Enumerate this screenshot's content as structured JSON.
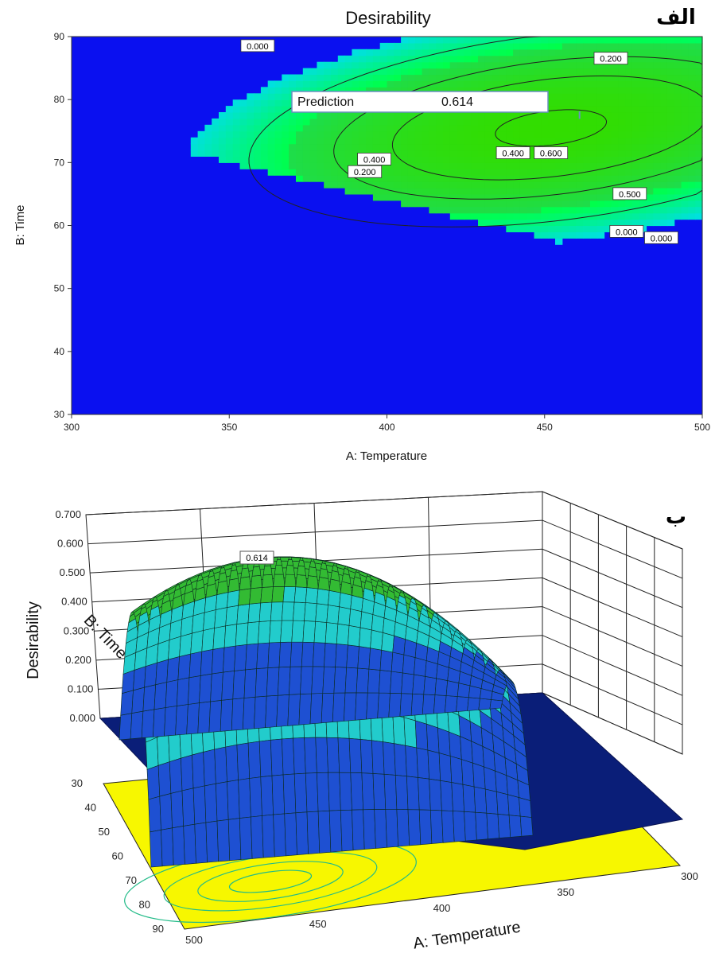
{
  "chart_data": [
    {
      "type": "heatmap",
      "panel_label": "الف",
      "title": "Desirability",
      "xlabel": "A: Temperature",
      "ylabel": "B: Time",
      "xlim": [
        300,
        500
      ],
      "ylim": [
        30,
        90
      ],
      "xticks": [
        "300",
        "350",
        "400",
        "450",
        "500"
      ],
      "yticks": [
        "30",
        "40",
        "50",
        "60",
        "70",
        "80",
        "90"
      ],
      "contour_levels": [
        0.0,
        0.2,
        0.4,
        0.5,
        0.6
      ],
      "contour_labels": [
        "0.000",
        "0.200",
        "0.400",
        "0.400",
        "0.600",
        "0.500",
        "0.200",
        "0.000",
        "0.000"
      ],
      "optimum": {
        "temperature": 452,
        "time": 75.5
      },
      "prediction": {
        "label": "Prediction",
        "value": "0.614"
      },
      "colors": {
        "zero": "#0a10f0",
        "low": "#00e0e0",
        "high": "#33dd00"
      }
    },
    {
      "type": "surface",
      "panel_label": "ب",
      "zlabel": "Desirability",
      "xlabel": "A: Temperature",
      "ylabel": "B: Time",
      "xticks": [
        "500",
        "450",
        "400",
        "350",
        "300"
      ],
      "yticks": [
        "30",
        "40",
        "50",
        "60",
        "70",
        "80",
        "90"
      ],
      "zticks": [
        "0.000",
        "0.100",
        "0.200",
        "0.300",
        "0.400",
        "0.500",
        "0.600",
        "0.700"
      ],
      "zlim": [
        0,
        0.7
      ],
      "peak_label": "0.614",
      "colors": {
        "floor": "#f7f700",
        "flat": "#0a1e78",
        "surface_low": "#1e50d2",
        "surface_mid": "#22cccc",
        "surface_high": "#33bb33"
      }
    }
  ]
}
